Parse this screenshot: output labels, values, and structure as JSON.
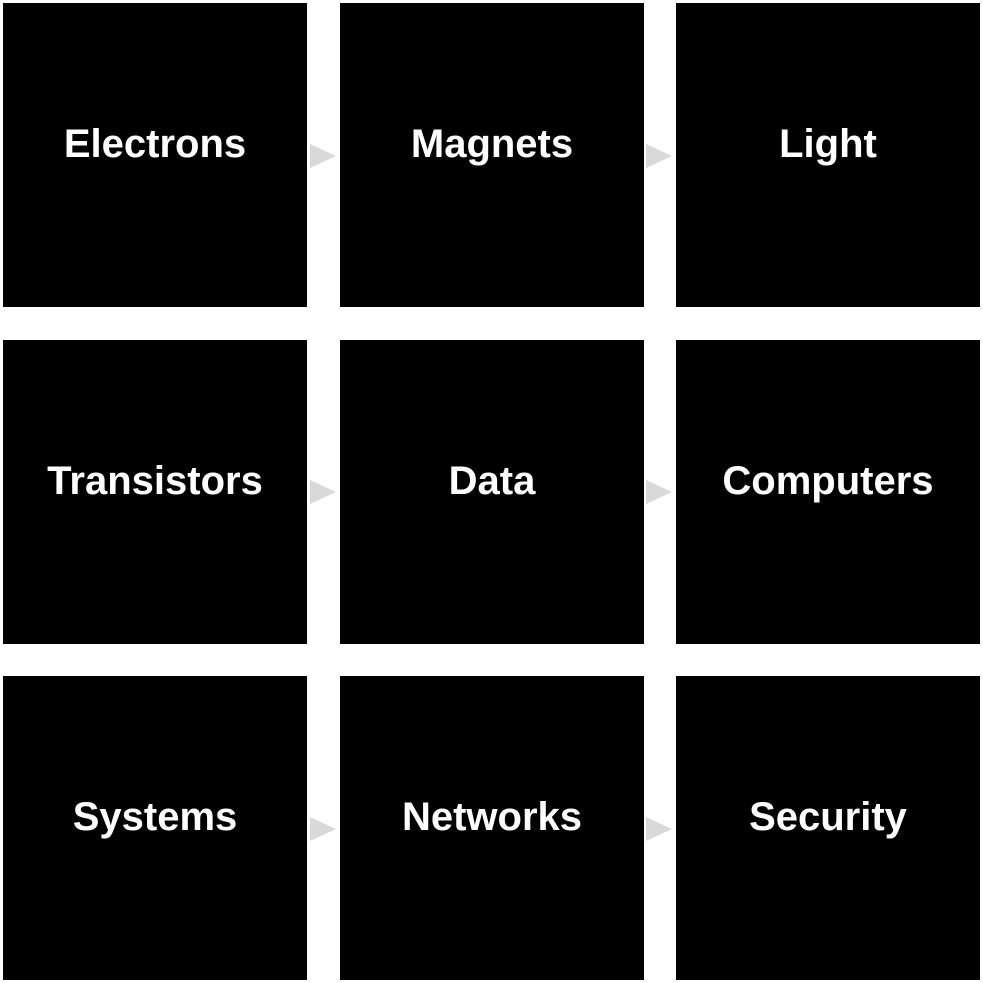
{
  "rows": [
    {
      "tiles": [
        {
          "label": "Electrons"
        },
        {
          "label": "Magnets"
        },
        {
          "label": "Light"
        }
      ]
    },
    {
      "tiles": [
        {
          "label": "Transistors"
        },
        {
          "label": "Data"
        },
        {
          "label": "Computers"
        }
      ]
    },
    {
      "tiles": [
        {
          "label": "Systems"
        },
        {
          "label": "Networks"
        },
        {
          "label": "Security"
        }
      ]
    }
  ],
  "colors": {
    "tile_background": "#000000",
    "tile_text": "#ffffff",
    "arrow": "#d9d9d9",
    "page_background": "#ffffff"
  }
}
